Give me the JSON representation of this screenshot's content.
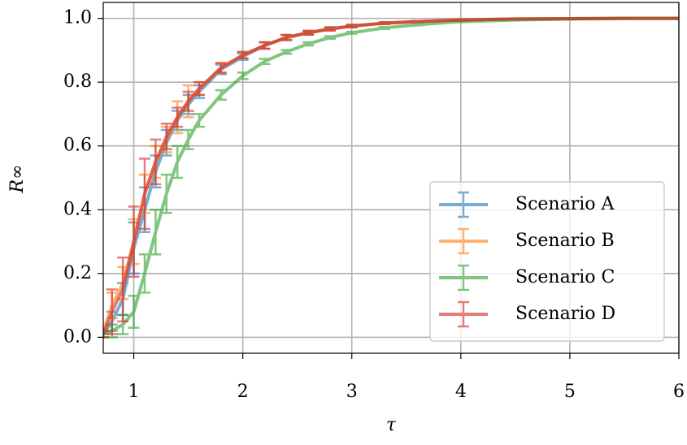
{
  "chart_data": {
    "type": "line",
    "x_label": "τ",
    "y_label": "R∞",
    "x": [
      0.72,
      0.8,
      0.9,
      1.0,
      1.1,
      1.2,
      1.3,
      1.4,
      1.5,
      1.6,
      1.8,
      2.0,
      2.2,
      2.4,
      2.6,
      2.8,
      3.0,
      3.3,
      3.6,
      4.0,
      4.5,
      5.0,
      5.5,
      6.0
    ],
    "series": [
      {
        "name": "Scenario A",
        "color": "#1f77b4",
        "values": [
          0.01,
          0.05,
          0.12,
          0.28,
          0.4,
          0.52,
          0.61,
          0.68,
          0.73,
          0.77,
          0.84,
          0.88,
          0.915,
          0.94,
          0.955,
          0.967,
          0.976,
          0.985,
          0.99,
          0.995,
          0.998,
          0.999,
          1.0,
          1.0
        ],
        "errors": [
          0.01,
          0.03,
          0.05,
          0.08,
          0.07,
          0.05,
          0.04,
          0.03,
          0.03,
          0.02,
          0.015,
          0.01,
          0.01,
          0.008,
          0.006,
          0.005,
          0.004,
          0.003,
          0.002,
          0.002,
          0.001,
          0.001,
          0,
          0
        ]
      },
      {
        "name": "Scenario B",
        "color": "#ff7f0e",
        "values": [
          0.02,
          0.1,
          0.17,
          0.3,
          0.45,
          0.55,
          0.62,
          0.69,
          0.74,
          0.78,
          0.845,
          0.885,
          0.915,
          0.94,
          0.955,
          0.967,
          0.976,
          0.985,
          0.99,
          0.995,
          0.998,
          0.999,
          1.0,
          1.0
        ],
        "errors": [
          0.01,
          0.04,
          0.05,
          0.07,
          0.06,
          0.05,
          0.04,
          0.05,
          0.05,
          0.02,
          0.015,
          0.01,
          0.01,
          0.008,
          0.006,
          0.005,
          0.004,
          0.003,
          0.002,
          0.002,
          0.001,
          0.001,
          0,
          0
        ]
      },
      {
        "name": "Scenario C",
        "color": "#2ca02c",
        "values": [
          0.01,
          0.02,
          0.04,
          0.08,
          0.2,
          0.33,
          0.45,
          0.55,
          0.62,
          0.68,
          0.76,
          0.82,
          0.865,
          0.895,
          0.92,
          0.94,
          0.955,
          0.97,
          0.98,
          0.99,
          0.995,
          0.998,
          1.0,
          1.0
        ],
        "errors": [
          0.01,
          0.02,
          0.03,
          0.05,
          0.06,
          0.07,
          0.06,
          0.05,
          0.03,
          0.02,
          0.015,
          0.01,
          0.008,
          0.006,
          0.005,
          0.004,
          0.003,
          0.003,
          0.002,
          0.002,
          0.001,
          0.001,
          0,
          0
        ]
      },
      {
        "name": "Scenario D",
        "color": "#d62728",
        "values": [
          0.01,
          0.08,
          0.15,
          0.3,
          0.45,
          0.55,
          0.63,
          0.69,
          0.74,
          0.78,
          0.845,
          0.885,
          0.915,
          0.94,
          0.955,
          0.967,
          0.976,
          0.985,
          0.99,
          0.995,
          0.998,
          0.999,
          1.0,
          1.0
        ],
        "errors": [
          0.01,
          0.07,
          0.1,
          0.11,
          0.11,
          0.07,
          0.04,
          0.03,
          0.03,
          0.02,
          0.015,
          0.01,
          0.01,
          0.008,
          0.006,
          0.005,
          0.004,
          0.003,
          0.002,
          0.002,
          0.001,
          0.001,
          0,
          0
        ]
      }
    ],
    "xlim": [
      0.72,
      6
    ],
    "ylim": [
      -0.05,
      1.05
    ],
    "xticks": [
      1,
      2,
      3,
      4,
      5,
      6
    ],
    "yticks": [
      {
        "value": 0,
        "label": "0.0"
      },
      0.2,
      0.4,
      0.6,
      0.8,
      {
        "value": 1,
        "label": "1.0"
      }
    ],
    "grid": true,
    "legend": "lower right"
  }
}
